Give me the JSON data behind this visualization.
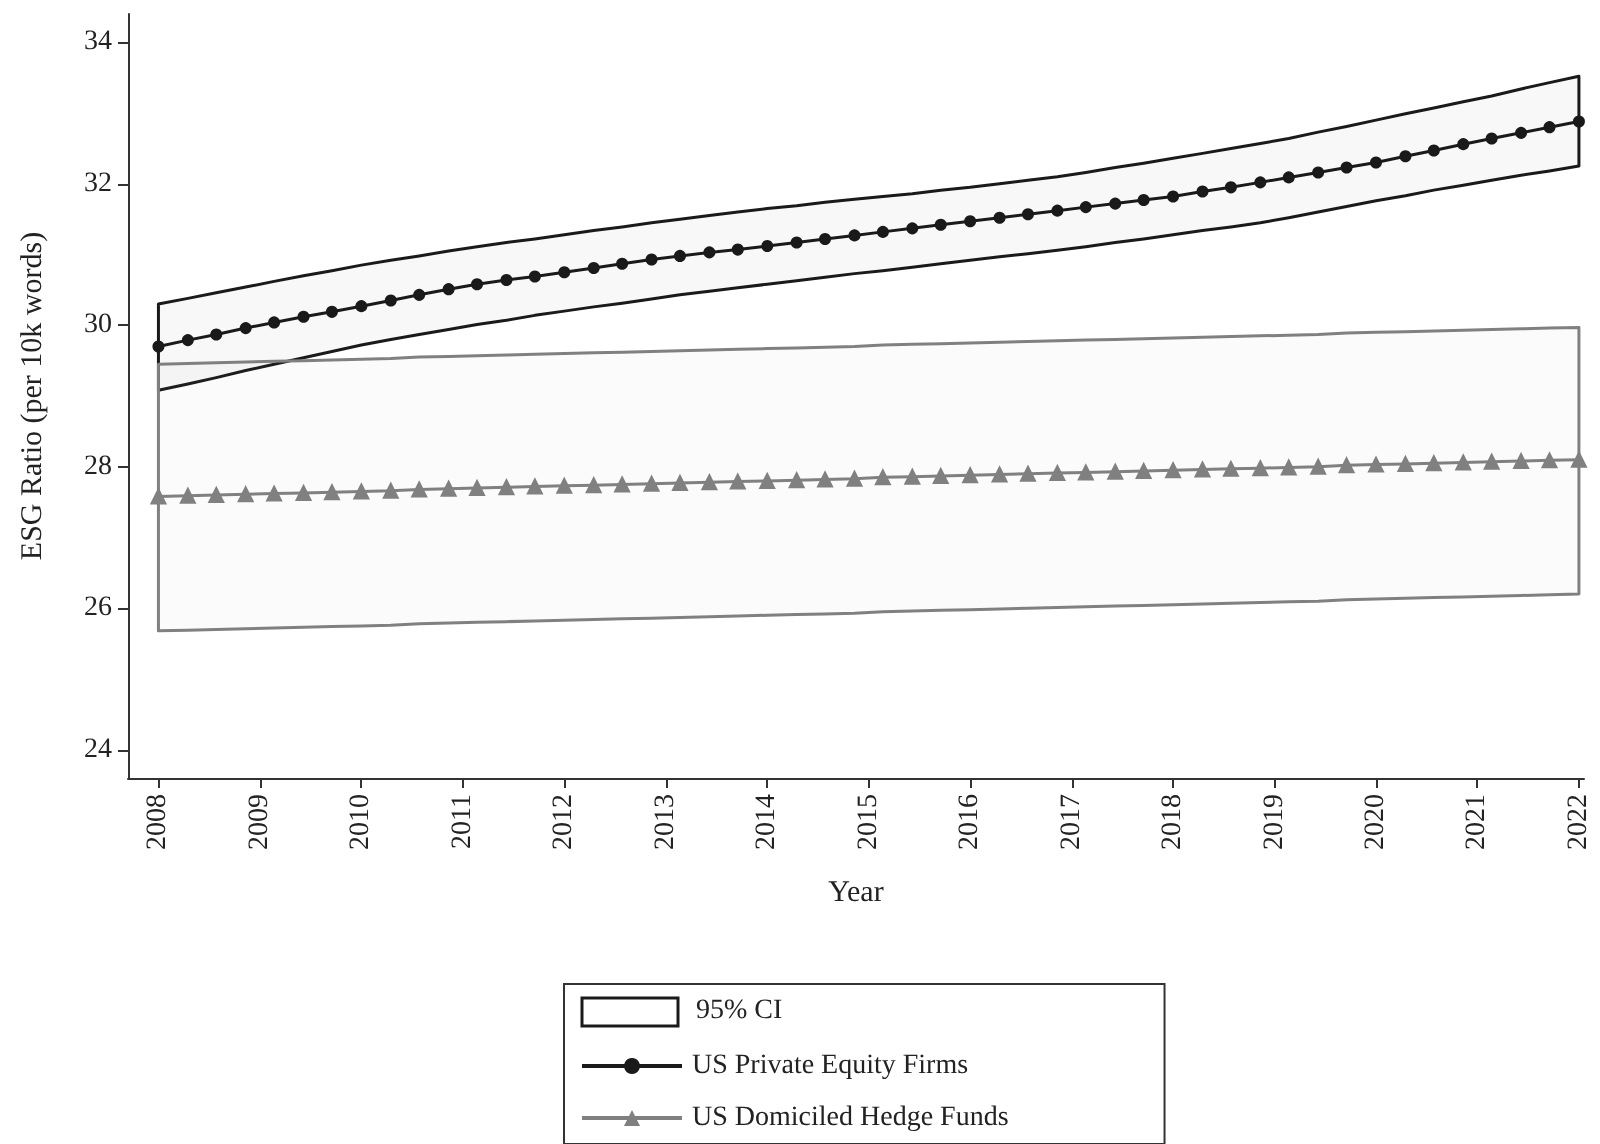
{
  "chart_data": {
    "type": "line",
    "xlabel": "Year",
    "ylabel": "ESG Ratio (per 10k words)",
    "xlim": [
      2007.7,
      2022.05
    ],
    "xticks": [
      2008,
      2009,
      2010,
      2011,
      2012,
      2013,
      2014,
      2015,
      2016,
      2017,
      2018,
      2019,
      2020,
      2021,
      2022
    ],
    "ylim": [
      23.6,
      34.4
    ],
    "yticks": [
      24,
      26,
      28,
      30,
      32,
      34
    ],
    "grid": false,
    "legend": "bottom",
    "annotations": [
      "95% CI"
    ],
    "x": [
      2008,
      2008.29,
      2008.57,
      2008.86,
      2009.14,
      2009.43,
      2009.71,
      2010,
      2010.29,
      2010.57,
      2010.86,
      2011.14,
      2011.43,
      2011.71,
      2012,
      2012.29,
      2012.57,
      2012.86,
      2013.14,
      2013.43,
      2013.71,
      2014,
      2014.29,
      2014.57,
      2014.86,
      2015.14,
      2015.43,
      2015.71,
      2016,
      2016.29,
      2016.57,
      2016.86,
      2017.14,
      2017.43,
      2017.71,
      2018,
      2018.29,
      2018.57,
      2018.86,
      2019.14,
      2019.43,
      2019.71,
      2020,
      2020.29,
      2020.57,
      2020.86,
      2021.14,
      2021.43,
      2021.71,
      2022
    ],
    "series": [
      {
        "name": "US Private Equity Firms",
        "color": "#1a1a1a",
        "marker": "circle",
        "values": [
          29.7,
          29.79,
          29.87,
          29.96,
          30.04,
          30.12,
          30.19,
          30.27,
          30.35,
          30.43,
          30.51,
          30.58,
          30.64,
          30.69,
          30.75,
          30.81,
          30.87,
          30.93,
          30.98,
          31.03,
          31.07,
          31.12,
          31.17,
          31.22,
          31.27,
          31.32,
          31.37,
          31.42,
          31.47,
          31.52,
          31.57,
          31.62,
          31.67,
          31.72,
          31.77,
          31.82,
          31.89,
          31.95,
          32.02,
          32.09,
          32.16,
          32.23,
          32.3,
          32.39,
          32.47,
          32.56,
          32.64,
          32.72,
          32.8,
          32.88
        ],
        "upper": [
          30.3,
          30.38,
          30.46,
          30.54,
          30.62,
          30.7,
          30.77,
          30.85,
          30.92,
          30.98,
          31.05,
          31.11,
          31.17,
          31.22,
          31.28,
          31.34,
          31.39,
          31.45,
          31.5,
          31.55,
          31.6,
          31.65,
          31.69,
          31.74,
          31.78,
          31.82,
          31.86,
          31.91,
          31.95,
          32.0,
          32.05,
          32.1,
          32.16,
          32.23,
          32.29,
          32.36,
          32.43,
          32.5,
          32.57,
          32.64,
          32.73,
          32.81,
          32.9,
          32.99,
          33.07,
          33.16,
          33.24,
          33.34,
          33.43,
          33.52
        ],
        "lower": [
          29.08,
          29.17,
          29.26,
          29.36,
          29.45,
          29.54,
          29.63,
          29.72,
          29.8,
          29.87,
          29.94,
          30.01,
          30.07,
          30.14,
          30.2,
          30.26,
          30.31,
          30.37,
          30.43,
          30.48,
          30.53,
          30.58,
          30.63,
          30.68,
          30.73,
          30.77,
          30.82,
          30.87,
          30.92,
          30.97,
          31.01,
          31.06,
          31.11,
          31.17,
          31.22,
          31.28,
          31.34,
          31.39,
          31.45,
          31.52,
          31.6,
          31.68,
          31.76,
          31.83,
          31.91,
          31.98,
          32.05,
          32.12,
          32.18,
          32.25
        ]
      },
      {
        "name": "US Domiciled Hedge Funds",
        "color": "#808080",
        "marker": "triangle",
        "values": [
          27.58,
          27.59,
          27.6,
          27.61,
          27.62,
          27.63,
          27.64,
          27.65,
          27.66,
          27.68,
          27.69,
          27.7,
          27.71,
          27.72,
          27.73,
          27.74,
          27.75,
          27.76,
          27.77,
          27.78,
          27.79,
          27.8,
          27.81,
          27.82,
          27.83,
          27.85,
          27.86,
          27.87,
          27.88,
          27.89,
          27.9,
          27.91,
          27.92,
          27.93,
          27.94,
          27.95,
          27.96,
          27.97,
          27.98,
          27.99,
          28.0,
          28.02,
          28.03,
          28.04,
          28.05,
          28.06,
          28.07,
          28.08,
          28.09,
          28.1
        ],
        "upper": [
          29.45,
          29.46,
          29.47,
          29.48,
          29.49,
          29.5,
          29.51,
          29.52,
          29.53,
          29.55,
          29.56,
          29.57,
          29.58,
          29.59,
          29.6,
          29.61,
          29.62,
          29.63,
          29.64,
          29.65,
          29.66,
          29.67,
          29.68,
          29.69,
          29.7,
          29.72,
          29.73,
          29.74,
          29.75,
          29.76,
          29.77,
          29.78,
          29.79,
          29.8,
          29.81,
          29.82,
          29.83,
          29.84,
          29.85,
          29.86,
          29.87,
          29.89,
          29.9,
          29.91,
          29.92,
          29.93,
          29.94,
          29.95,
          29.96,
          29.97
        ],
        "lower": [
          25.68,
          25.69,
          25.7,
          25.71,
          25.72,
          25.73,
          25.74,
          25.75,
          25.76,
          25.78,
          25.79,
          25.8,
          25.81,
          25.82,
          25.83,
          25.84,
          25.85,
          25.86,
          25.87,
          25.88,
          25.89,
          25.9,
          25.91,
          25.92,
          25.93,
          25.95,
          25.96,
          25.97,
          25.98,
          25.99,
          26.0,
          26.01,
          26.02,
          26.03,
          26.04,
          26.05,
          26.06,
          26.07,
          26.08,
          26.09,
          26.1,
          26.12,
          26.13,
          26.14,
          26.15,
          26.16,
          26.17,
          26.18,
          26.19,
          26.2
        ]
      }
    ]
  }
}
